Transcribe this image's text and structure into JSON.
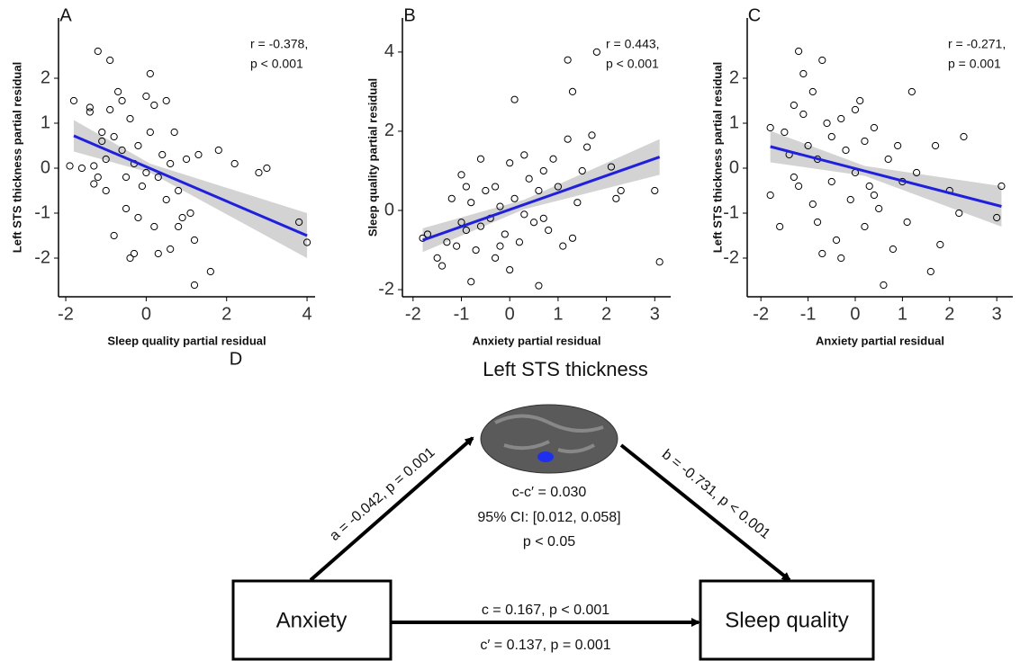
{
  "chart_data": [
    {
      "type": "scatter",
      "panel_label": "A",
      "xlabel": "Sleep quality partial residual",
      "ylabel": "Left STS thickness partial residual",
      "annotations": [
        "r = -0.378,",
        "p < 0.001"
      ],
      "x": [
        -1.9,
        -1.8,
        -1.6,
        -1.4,
        -1.4,
        -1.3,
        -1.3,
        -1.2,
        -1.2,
        -1.1,
        -1.1,
        -1,
        -1,
        -0.9,
        -0.9,
        -0.8,
        -0.8,
        -0.7,
        -0.6,
        -0.6,
        -0.5,
        -0.5,
        -0.4,
        -0.4,
        -0.3,
        -0.3,
        -0.2,
        -0.2,
        -0.1,
        0,
        0,
        0.1,
        0.1,
        0.2,
        0.2,
        0.3,
        0.3,
        0.4,
        0.5,
        0.5,
        0.6,
        0.6,
        0.7,
        0.8,
        0.8,
        0.9,
        1,
        1.1,
        1.2,
        1.2,
        1.3,
        1.6,
        1.8,
        2.2,
        2.8,
        3,
        3.8,
        4
      ],
      "y": [
        0.05,
        1.5,
        0,
        1.35,
        1.25,
        0.05,
        -0.35,
        -0.2,
        2.6,
        0.8,
        0.6,
        0.2,
        -0.5,
        1.3,
        2.4,
        -1.5,
        0.7,
        1.7,
        1.5,
        0.4,
        -0.2,
        -0.9,
        -2,
        1.1,
        0.1,
        -1.9,
        0.5,
        -1.1,
        -0.4,
        1.6,
        -0.1,
        0.8,
        2.1,
        1.4,
        -1.3,
        -0.2,
        -1.9,
        0.3,
        -0.7,
        1.5,
        0.1,
        -1.8,
        0.8,
        -0.5,
        -1.3,
        -1.1,
        0.2,
        -1,
        -2.6,
        -1.6,
        0.3,
        -2.3,
        0.4,
        0.1,
        -0.1,
        0,
        -1.2,
        -1.65
      ],
      "color": "#000000",
      "fit": {
        "x": [
          -1.8,
          4
        ],
        "y": [
          0.72,
          -1.5
        ],
        "color": "#1f1fe0"
      },
      "band": {
        "x": [
          -1.8,
          0.1,
          4
        ],
        "lower": [
          0.37,
          -0.1,
          -2
        ],
        "upper": [
          1.07,
          0.1,
          -1
        ],
        "color": "#d3d3d3"
      },
      "xlim": [
        -2.18,
        4.2
      ],
      "ylim": [
        -2.86,
        3.34
      ],
      "xticks": [
        -2,
        0,
        2,
        4
      ],
      "yticks": [
        -2,
        -1,
        0,
        1,
        2
      ]
    },
    {
      "type": "scatter",
      "panel_label": "B",
      "xlabel": "Anxiety partial residual",
      "ylabel": "Sleep quality partial residual",
      "annotations": [
        "r = 0.443,",
        "p < 0.001"
      ],
      "x": [
        -1.8,
        -1.7,
        -1.5,
        -1.4,
        -1.3,
        -1.2,
        -1.1,
        -1,
        -1,
        -0.9,
        -0.9,
        -0.8,
        -0.8,
        -0.7,
        -0.6,
        -0.6,
        -0.5,
        -0.4,
        -0.3,
        -0.3,
        -0.2,
        -0.2,
        -0.1,
        0,
        0,
        0.1,
        0.1,
        0.2,
        0.3,
        0.3,
        0.4,
        0.5,
        0.6,
        0.6,
        0.7,
        0.7,
        0.8,
        0.9,
        1,
        1.1,
        1.2,
        1.2,
        1.3,
        1.3,
        1.4,
        1.5,
        1.6,
        1.7,
        1.8,
        2.1,
        2.2,
        2.3,
        3,
        3.1
      ],
      "y": [
        -0.7,
        -0.6,
        -1.2,
        -1.4,
        -0.8,
        0.3,
        -0.9,
        -0.3,
        0.9,
        -0.5,
        0.6,
        -1.8,
        0.2,
        -1,
        1.3,
        -0.4,
        0.5,
        -0.2,
        0.6,
        -1.2,
        0.1,
        -0.9,
        -0.6,
        1.2,
        -1.5,
        2.8,
        0.3,
        -0.8,
        1.4,
        -0.1,
        0.8,
        -0.3,
        -1.9,
        0.5,
        1,
        -0.2,
        -0.5,
        1.3,
        0.6,
        -0.9,
        3.8,
        1.8,
        3,
        -0.7,
        0.2,
        1,
        1.6,
        1.9,
        4,
        1.1,
        0.3,
        0.5,
        0.5,
        -1.3
      ],
      "color": "#000000",
      "fit": {
        "x": [
          -1.8,
          3.1
        ],
        "y": [
          -0.75,
          1.35
        ],
        "color": "#1f1fe0"
      },
      "band": {
        "x": [
          -1.8,
          0.3,
          3.1
        ],
        "lower": [
          -1.05,
          0.03,
          0.9
        ],
        "upper": [
          -0.45,
          0.27,
          1.8
        ],
        "color": "#d3d3d3"
      },
      "xlim": [
        -2.22,
        3.33
      ],
      "ylim": [
        -2.18,
        4.86
      ],
      "xticks": [
        -2,
        -1,
        0,
        1,
        2,
        3
      ],
      "yticks": [
        -2,
        0,
        2,
        4
      ]
    },
    {
      "type": "scatter",
      "panel_label": "C",
      "xlabel": "Anxiety partial residual",
      "ylabel": "Left STS thickness partial residual",
      "annotations": [
        "r = -0.271,",
        "p = 0.001"
      ],
      "x": [
        -1.8,
        -1.8,
        -1.6,
        -1.5,
        -1.4,
        -1.3,
        -1.3,
        -1.2,
        -1.2,
        -1.1,
        -1.1,
        -1,
        -0.9,
        -0.9,
        -0.8,
        -0.8,
        -0.7,
        -0.7,
        -0.6,
        -0.5,
        -0.5,
        -0.4,
        -0.3,
        -0.3,
        -0.2,
        -0.1,
        0,
        0,
        0.1,
        0.2,
        0.2,
        0.3,
        0.4,
        0.4,
        0.5,
        0.6,
        0.7,
        0.8,
        0.9,
        1,
        1.1,
        1.2,
        1.3,
        1.6,
        1.7,
        1.8,
        2,
        2.2,
        2.3,
        3,
        3.1
      ],
      "y": [
        0.9,
        -0.6,
        -1.3,
        0.8,
        0.3,
        1.4,
        -0.2,
        2.6,
        -0.4,
        1.2,
        2.1,
        0.5,
        -0.8,
        1.7,
        0.2,
        -1.2,
        2.4,
        -1.9,
        1,
        -0.3,
        0.7,
        -1.6,
        1.1,
        -2,
        0.4,
        -0.7,
        1.3,
        -0.1,
        1.5,
        0.6,
        -1.3,
        -0.4,
        0.9,
        -0.6,
        -0.9,
        -2.6,
        0.2,
        -1.8,
        0.5,
        -0.3,
        -1.2,
        1.7,
        -0.1,
        -2.3,
        0.5,
        -1.7,
        -0.5,
        -1,
        0.7,
        -1.1,
        -0.4
      ],
      "color": "#000000",
      "fit": {
        "x": [
          -1.8,
          3.1
        ],
        "y": [
          0.48,
          -0.85
        ],
        "color": "#1f1fe0"
      },
      "band": {
        "x": [
          -1.8,
          0.2,
          3.1
        ],
        "lower": [
          0.13,
          -0.17,
          -1.3
        ],
        "upper": [
          0.83,
          0.05,
          -0.4
        ],
        "color": "#d3d3d3"
      },
      "xlim": [
        -2.29,
        3.34
      ],
      "ylim": [
        -2.86,
        3.34
      ],
      "xticks": [
        -2,
        -1,
        0,
        1,
        2,
        3
      ],
      "yticks": [
        -2,
        -1,
        0,
        1,
        2
      ]
    }
  ],
  "diagram": {
    "panel_label": "D",
    "mediator": "Left STS thickness",
    "x_node": "Anxiety",
    "y_node": "Sleep quality",
    "a_path": "a = -0.042, p = 0.001",
    "b_path": "b = -0.731, p < 0.001",
    "indirect": [
      "c-c′ = 0.030",
      "95% CI: [0.012, 0.058]",
      "p < 0.05"
    ],
    "c_path": "c = 0.167, p < 0.001",
    "c_prime_path": "c′ = 0.137, p = 0.001"
  }
}
